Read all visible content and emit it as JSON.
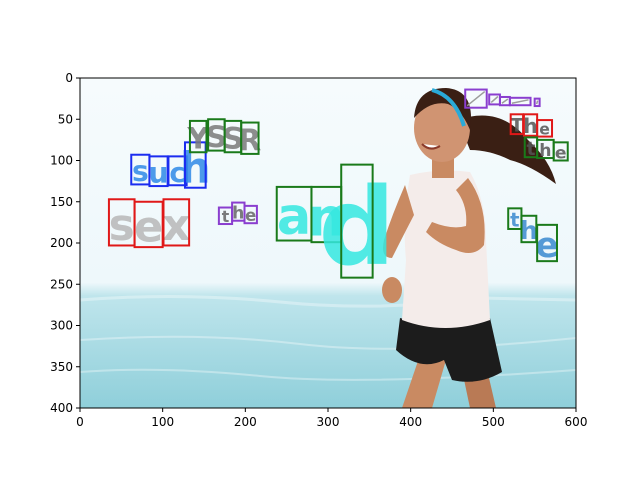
{
  "axes": {
    "x_ticks": [
      0,
      100,
      200,
      300,
      400,
      500,
      600
    ],
    "y_ticks": [
      0,
      50,
      100,
      150,
      200,
      250,
      300,
      350,
      400
    ],
    "xlim": [
      0,
      600
    ],
    "ylim": [
      400,
      0
    ]
  },
  "scene": {
    "sky_color": "#f3fafc",
    "sea_color": "#a9dbe3",
    "person_description_colors": {
      "skin": "#c98a62",
      "hair": "#3a1f14",
      "tank": "#f4ecea",
      "shorts": "#1c1c1c",
      "headband": "#2aaad8"
    }
  },
  "words": [
    {
      "text": "such",
      "color": "#1b2cf0",
      "fill": "#2f8ae8",
      "boxes": [
        [
          62,
          93,
          84,
          129
        ],
        [
          84,
          95,
          106,
          131
        ],
        [
          107,
          95,
          129,
          130
        ],
        [
          127,
          78,
          152,
          133
        ]
      ]
    },
    {
      "text": "YSSR",
      "color": "#1a7a1a",
      "fill": "#7a7a7a",
      "boxes": [
        [
          133,
          52,
          153,
          90
        ],
        [
          155,
          50,
          175,
          88
        ],
        [
          175,
          52,
          195,
          90
        ],
        [
          195,
          54,
          216,
          92
        ]
      ]
    },
    {
      "text": "sex",
      "color": "#e01818",
      "fill": "#b8b8b8",
      "boxes": [
        [
          35,
          147,
          66,
          203
        ],
        [
          66,
          150,
          100,
          205
        ],
        [
          101,
          147,
          132,
          203
        ]
      ]
    },
    {
      "text": "the",
      "color": "#8a3ecf",
      "fill": "#666666",
      "boxes": [
        [
          168,
          157,
          184,
          177
        ],
        [
          184,
          151,
          199,
          173
        ],
        [
          199,
          155,
          214,
          176
        ]
      ]
    },
    {
      "text": "and",
      "color": "#1a7a1a",
      "fill": "#35e8e0",
      "boxes": [
        [
          238,
          132,
          280,
          197
        ],
        [
          280,
          132,
          316,
          199
        ],
        [
          316,
          105,
          354,
          242
        ]
      ]
    },
    {
      "text": "",
      "color": "#8a3ecf",
      "fill": "#9c9c9c",
      "boxes": [
        [
          466,
          14,
          492,
          36
        ],
        [
          495,
          20,
          508,
          32
        ],
        [
          508,
          23,
          520,
          33
        ],
        [
          520,
          24,
          545,
          33
        ],
        [
          550,
          25,
          556,
          34
        ]
      ]
    },
    {
      "text": "The",
      "color": "#e01818",
      "fill": "#555555",
      "boxes": [
        [
          521,
          44,
          536,
          68
        ],
        [
          537,
          44,
          553,
          70
        ],
        [
          553,
          51,
          571,
          71
        ]
      ]
    },
    {
      "text": "the",
      "color": "#1a7a1a",
      "fill": "#555555",
      "boxes": [
        [
          538,
          72,
          553,
          96
        ],
        [
          553,
          75,
          573,
          97
        ],
        [
          573,
          78,
          590,
          100
        ]
      ]
    },
    {
      "text": "the",
      "color": "#1a7a1a",
      "fill": "#3a8ad0",
      "boxes": [
        [
          518,
          158,
          534,
          183
        ],
        [
          534,
          167,
          552,
          199
        ],
        [
          553,
          178,
          577,
          222
        ]
      ]
    }
  ]
}
